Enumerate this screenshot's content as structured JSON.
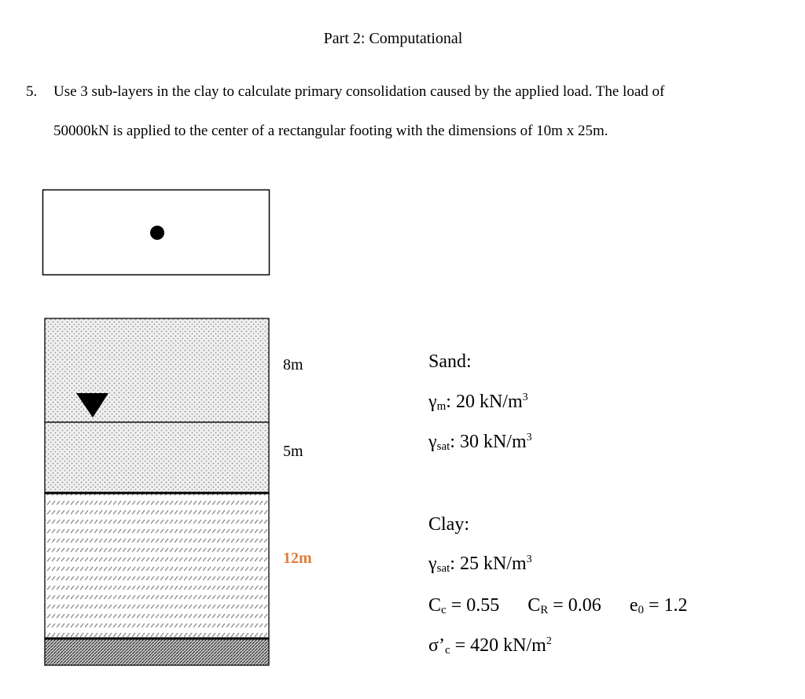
{
  "title": "Part 2: Computational",
  "question": {
    "number": "5.",
    "line1": "Use 3 sub-layers in the clay to calculate primary consolidation caused by the applied load. The load of",
    "line2": "50000kN is applied to the center of a rectangular footing with the dimensions of 10m x 25m."
  },
  "profile": {
    "layers": [
      {
        "thickness": "8m",
        "material": "sand"
      },
      {
        "thickness": "5m",
        "material": "sand"
      },
      {
        "thickness": "12m",
        "material": "clay",
        "color": "#e07b39"
      },
      {
        "material": "rock"
      }
    ],
    "water_table_icon": "inverted-triangle"
  },
  "sand": {
    "heading": "Sand:",
    "gamma_m": {
      "symbol": "γ",
      "sub": "m",
      "value": ": 20 kN/m",
      "sup": "3"
    },
    "gamma_sat": {
      "symbol": "γ",
      "sub": "sat",
      "value": ": 30 kN/m",
      "sup": "3"
    }
  },
  "clay": {
    "heading": "Clay:",
    "gamma_sat": {
      "symbol": "γ",
      "sub": "sat",
      "value": ": 25 kN/m",
      "sup": "3"
    },
    "cc": {
      "symbol": "C",
      "sub": "c",
      "value": " = 0.55"
    },
    "cr": {
      "symbol": "C",
      "sub": "R",
      "value": " = 0.06"
    },
    "e0": {
      "symbol": "e",
      "sub": "0",
      "value": " = 1.2"
    },
    "sigma_c": {
      "symbol": "σ’",
      "sub": "c",
      "value": " = 420 kN/m",
      "sup": "2"
    }
  }
}
